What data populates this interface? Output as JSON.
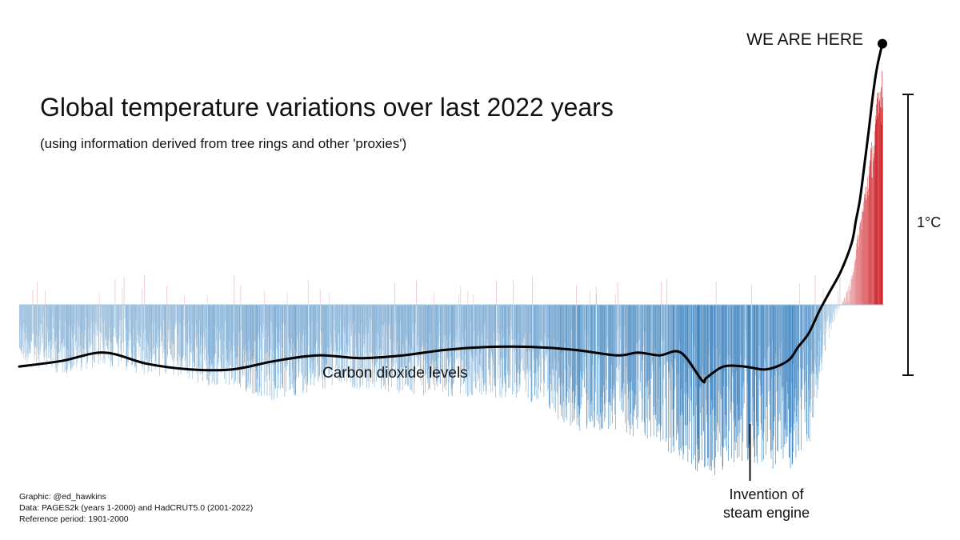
{
  "chart_data": {
    "type": "bar",
    "title": "Global temperature variations over last 2022 years",
    "subtitle": "(using information derived from tree rings and other 'proxies')",
    "x_range": [
      1,
      2022
    ],
    "reference_period": "1901-2000",
    "scale_bar": {
      "value": 1,
      "label": "1°C"
    },
    "anomaly_envelope": {
      "x": [
        1,
        100,
        200,
        300,
        400,
        500,
        600,
        700,
        800,
        900,
        1000,
        1100,
        1200,
        1300,
        1400,
        1500,
        1600,
        1650,
        1700,
        1750,
        1800,
        1850,
        1900,
        1950,
        2000,
        2022
      ],
      "y": [
        -0.2,
        -0.25,
        -0.22,
        -0.25,
        -0.28,
        -0.3,
        -0.35,
        -0.3,
        -0.3,
        -0.32,
        -0.33,
        -0.33,
        -0.35,
        -0.45,
        -0.45,
        -0.5,
        -0.62,
        -0.6,
        -0.55,
        -0.58,
        -0.6,
        -0.5,
        -0.1,
        0.1,
        0.55,
        0.8
      ]
    },
    "colors": {
      "cold": "#2171b5",
      "warm": "#cb181d",
      "line": "#000000"
    },
    "series": [
      {
        "name": "Carbon dioxide levels",
        "x": [
          1,
          100,
          200,
          300,
          400,
          500,
          600,
          700,
          800,
          900,
          1000,
          1100,
          1200,
          1300,
          1400,
          1450,
          1500,
          1550,
          1600,
          1610,
          1650,
          1700,
          1750,
          1800,
          1825,
          1850,
          1875,
          1900,
          1925,
          1950,
          1960,
          1970,
          1980,
          1990,
          2000,
          2010,
          2022
        ],
        "y": [
          -0.22,
          -0.2,
          -0.17,
          -0.21,
          -0.23,
          -0.23,
          -0.2,
          -0.18,
          -0.19,
          -0.18,
          -0.16,
          -0.15,
          -0.15,
          -0.16,
          -0.18,
          -0.17,
          -0.18,
          -0.17,
          -0.27,
          -0.26,
          -0.22,
          -0.22,
          -0.23,
          -0.2,
          -0.15,
          -0.1,
          -0.02,
          0.05,
          0.12,
          0.22,
          0.3,
          0.38,
          0.5,
          0.62,
          0.75,
          0.85,
          0.93
        ]
      }
    ],
    "annotations": [
      {
        "text": "WE ARE HERE",
        "x": 2022
      },
      {
        "text": "Invention of steam engine",
        "x": 1712
      }
    ]
  },
  "labels": {
    "here": "WE ARE HERE",
    "co2": "Carbon dioxide levels",
    "steam_line1": "Invention of",
    "steam_line2": "steam engine",
    "scale": "1°C"
  },
  "credits": {
    "graphic": "Graphic: @ed_hawkins",
    "data": "Data: PAGES2k (years 1-2000) and HadCRUT5.0 (2001-2022)",
    "reference": "Reference period: 1901-2000"
  }
}
